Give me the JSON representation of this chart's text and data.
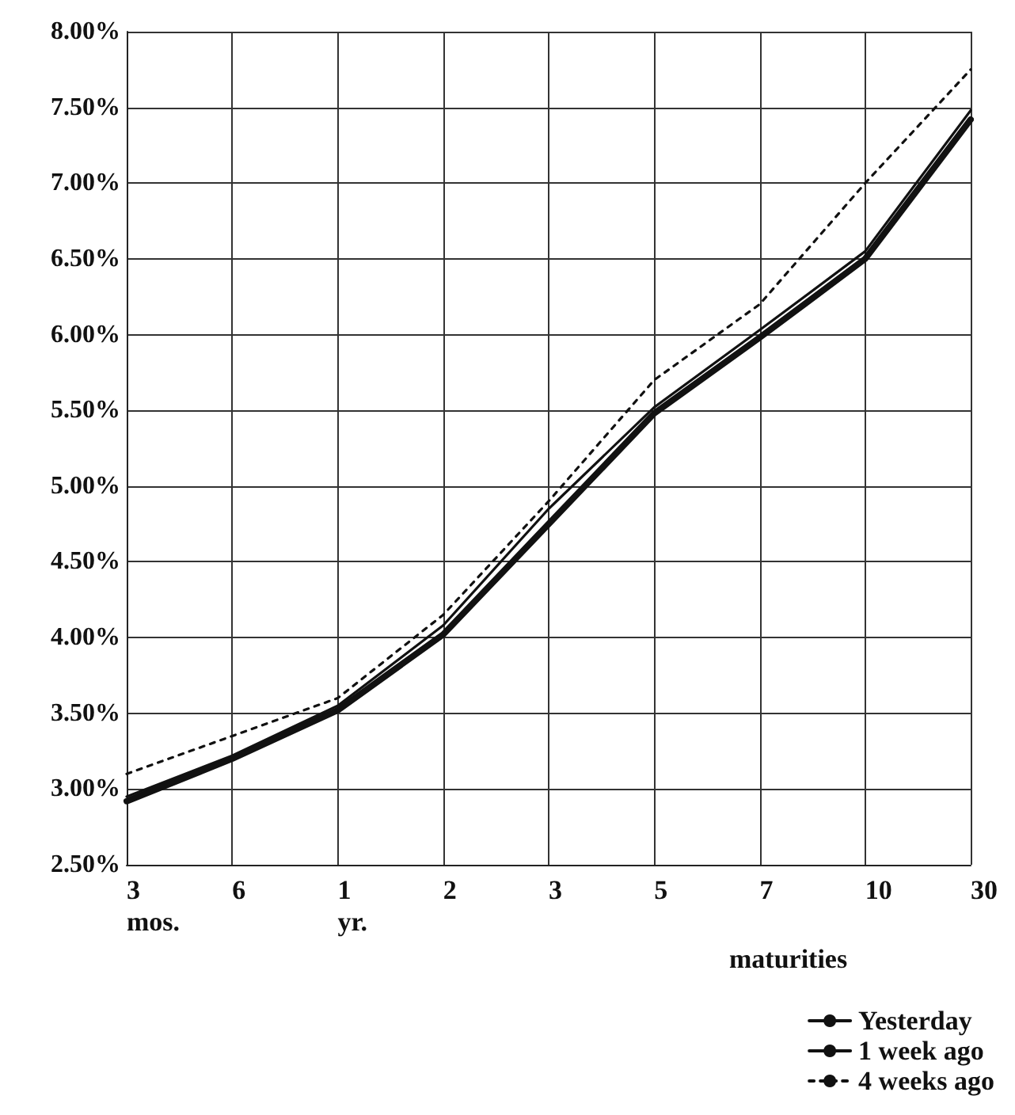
{
  "chart_data": {
    "type": "line",
    "xlabel": "maturities",
    "categories": [
      "3\nmos.",
      "6",
      "1\nyr.",
      "2",
      "3",
      "5",
      "7",
      "10",
      "30"
    ],
    "series": [
      {
        "name": "Yesterday",
        "color": "#111111",
        "line_style": "solid",
        "values": [
          2.92,
          3.2,
          3.52,
          4.02,
          4.75,
          5.48,
          5.98,
          6.5,
          7.42
        ]
      },
      {
        "name": "1 week ago",
        "color": "#111111",
        "line_style": "solid",
        "values": [
          2.95,
          3.22,
          3.55,
          4.08,
          4.85,
          5.52,
          6.03,
          6.55,
          7.48
        ]
      },
      {
        "name": "4 weeks ago",
        "color": "#111111",
        "line_style": "dotted",
        "values": [
          3.1,
          3.35,
          3.6,
          4.15,
          4.9,
          5.7,
          6.2,
          7.0,
          7.75
        ]
      }
    ],
    "ylim": [
      2.5,
      8.0
    ],
    "yticks": [
      {
        "value": 2.5,
        "label": "2.50%"
      },
      {
        "value": 3.0,
        "label": "3.00%"
      },
      {
        "value": 3.5,
        "label": "3.50%"
      },
      {
        "value": 4.0,
        "label": "4.00%"
      },
      {
        "value": 4.5,
        "label": "4.50%"
      },
      {
        "value": 5.0,
        "label": "5.00%"
      },
      {
        "value": 5.5,
        "label": "5.50%"
      },
      {
        "value": 6.0,
        "label": "6.00%"
      },
      {
        "value": 6.5,
        "label": "6.50%"
      },
      {
        "value": 7.0,
        "label": "7.00%"
      },
      {
        "value": 7.5,
        "label": "7.50%"
      },
      {
        "value": 8.0,
        "label": "8.00%"
      }
    ],
    "grid": true,
    "legend": "bottom right",
    "marker": "none"
  }
}
